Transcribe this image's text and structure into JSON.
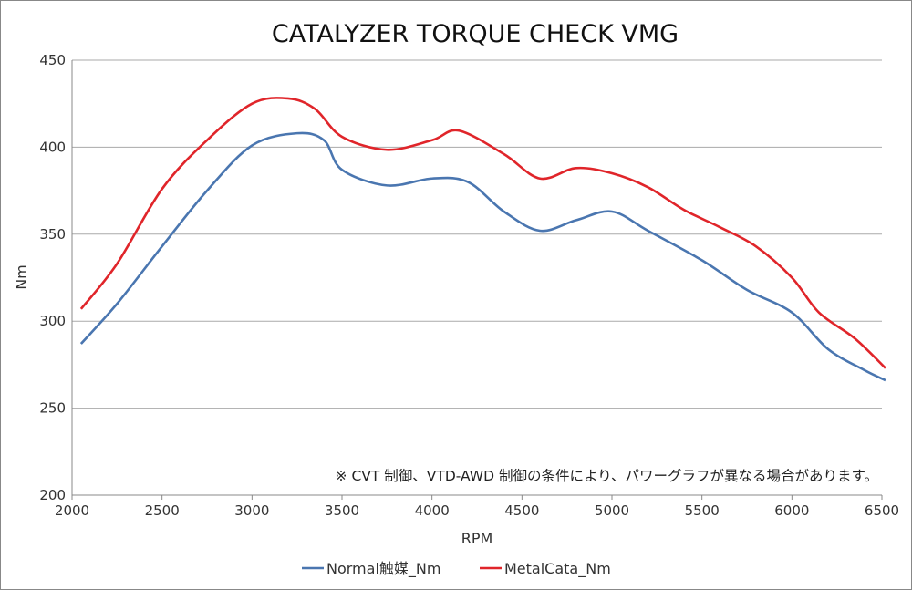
{
  "chart_data": {
    "type": "line",
    "title": "CATALYZER TORQUE CHECK VMG",
    "xlabel": "RPM",
    "ylabel": "Nm",
    "xlim": [
      2000,
      6500
    ],
    "ylim": [
      200,
      450
    ],
    "xticks": [
      2000,
      2500,
      3000,
      3500,
      4000,
      4500,
      5000,
      5500,
      6000,
      6500
    ],
    "yticks": [
      200,
      250,
      300,
      350,
      400,
      450
    ],
    "grid": "horizontal",
    "legend": "bottom",
    "annotation": "※ CVT 制御、VTD-AWD 制御の条件により、パワーグラフが異なる場合があります。",
    "series": [
      {
        "name": "Normal触媒_Nm",
        "color": "#4a76b0",
        "x": [
          2050,
          2250,
          2500,
          2750,
          3000,
          3250,
          3400,
          3500,
          3750,
          4000,
          4200,
          4400,
          4600,
          4800,
          5000,
          5200,
          5500,
          5750,
          6000,
          6200,
          6400,
          6520
        ],
        "y": [
          287,
          310,
          343,
          375,
          401,
          408,
          404,
          387,
          378,
          382,
          380,
          363,
          352,
          358,
          363,
          352,
          335,
          318,
          305,
          284,
          272,
          266
        ]
      },
      {
        "name": "MetalCata_Nm",
        "color": "#e0252a",
        "x": [
          2050,
          2250,
          2500,
          2750,
          3000,
          3200,
          3350,
          3500,
          3750,
          4000,
          4150,
          4400,
          4600,
          4800,
          5000,
          5200,
          5400,
          5600,
          5800,
          6000,
          6150,
          6350,
          6520
        ],
        "y": [
          307,
          333,
          376,
          404,
          425,
          428,
          422,
          406,
          398.5,
          404,
          409.5,
          396,
          382,
          388,
          385,
          377,
          364,
          354,
          343,
          325,
          305,
          290,
          273
        ]
      }
    ]
  }
}
